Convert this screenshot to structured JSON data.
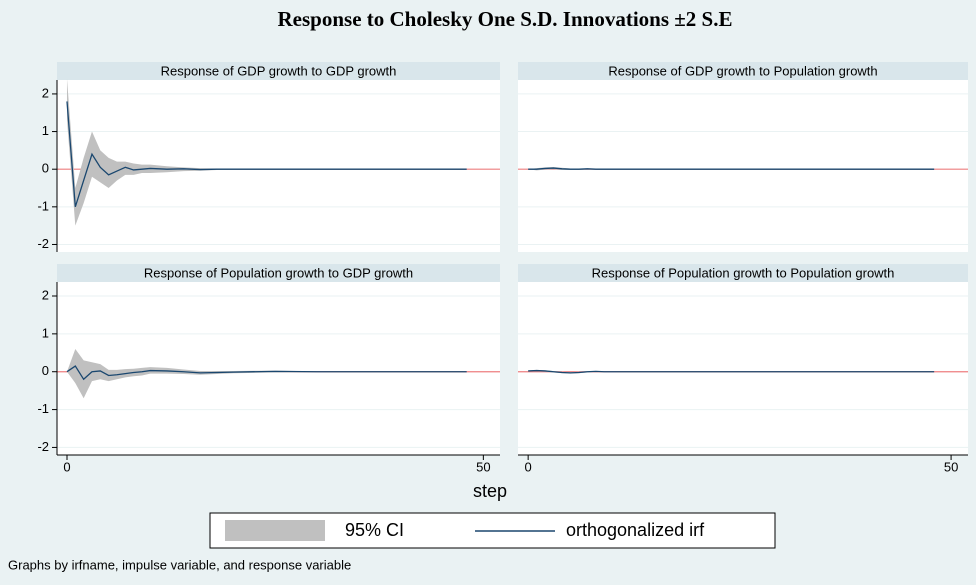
{
  "chart_data": {
    "type": "line",
    "title": "Response to Cholesky One S.D. Innovations ±2 S.E",
    "xlabel": "step",
    "note": "Graphs by irfname, impulse variable, and response variable",
    "series": [
      {
        "name": "95% CI",
        "color": "#c0c0c0"
      },
      {
        "name": "orthogonalized irf",
        "color": "#1a476f"
      }
    ],
    "zero_line_color": "#f08080",
    "grid": true,
    "xlim": [
      -1.2,
      52
    ],
    "xticks": [
      0,
      50
    ],
    "ylim": [
      -2.2,
      2.37
    ],
    "yticks": [
      -2,
      -1,
      0,
      1,
      2
    ],
    "x": [
      0,
      1,
      2,
      3,
      4,
      5,
      6,
      7,
      8,
      9,
      10,
      12,
      14,
      16,
      18,
      20,
      25,
      30,
      35,
      40,
      48
    ],
    "panels": [
      {
        "title": "Response of GDP growth to GDP growth",
        "irf": [
          1.8,
          -1.0,
          -0.3,
          0.4,
          0.05,
          -0.15,
          -0.05,
          0.05,
          -0.02,
          0,
          0.02,
          0,
          0.01,
          -0.01,
          0,
          0,
          0,
          0,
          0,
          0,
          0
        ],
        "ci_upper": [
          2.4,
          -0.5,
          0.3,
          1.0,
          0.5,
          0.3,
          0.2,
          0.2,
          0.15,
          0.12,
          0.12,
          0.08,
          0.05,
          0.03,
          0.02,
          0.01,
          0.01,
          0,
          0,
          0,
          0
        ],
        "ci_lower": [
          1.3,
          -1.5,
          -0.9,
          -0.2,
          -0.35,
          -0.5,
          -0.3,
          -0.15,
          -0.15,
          -0.1,
          -0.1,
          -0.08,
          -0.05,
          -0.04,
          -0.02,
          -0.01,
          -0.01,
          0,
          0,
          0,
          0
        ]
      },
      {
        "title": "Response of GDP growth to Population growth",
        "irf": [
          0,
          0,
          0.02,
          0.03,
          0.01,
          0,
          0,
          0.01,
          0,
          0,
          0,
          0,
          0,
          0,
          0,
          0,
          0,
          0,
          0,
          0,
          0
        ],
        "ci_upper": [
          0,
          0.03,
          0.05,
          0.06,
          0.04,
          0.02,
          0.02,
          0.02,
          0.01,
          0.01,
          0.01,
          0,
          0,
          0,
          0,
          0,
          0,
          0,
          0,
          0,
          0
        ],
        "ci_lower": [
          0,
          -0.03,
          -0.01,
          0,
          -0.02,
          -0.02,
          -0.02,
          -0.01,
          -0.01,
          -0.01,
          -0.01,
          0,
          0,
          0,
          0,
          0,
          0,
          0,
          0,
          0,
          0
        ]
      },
      {
        "title": "Response of Population growth to GDP growth",
        "irf": [
          0,
          0.15,
          -0.2,
          0,
          0.02,
          -0.1,
          -0.08,
          -0.05,
          -0.02,
          0,
          0.03,
          0.02,
          0,
          -0.03,
          -0.02,
          -0.01,
          0.01,
          0,
          0,
          0,
          0
        ],
        "ci_upper": [
          0,
          0.6,
          0.3,
          0.25,
          0.2,
          0.05,
          0.05,
          0.07,
          0.08,
          0.1,
          0.12,
          0.1,
          0.06,
          0.02,
          0.02,
          0.02,
          0.03,
          0.01,
          0,
          0,
          0
        ],
        "ci_lower": [
          0,
          -0.3,
          -0.7,
          -0.25,
          -0.2,
          -0.25,
          -0.2,
          -0.15,
          -0.12,
          -0.1,
          -0.05,
          -0.05,
          -0.06,
          -0.08,
          -0.06,
          -0.04,
          -0.02,
          -0.01,
          0,
          0,
          0
        ]
      },
      {
        "title": "Response of Population growth to Population growth",
        "irf": [
          0.02,
          0.03,
          0.02,
          0,
          -0.02,
          -0.03,
          -0.02,
          0,
          0.01,
          0,
          0,
          0,
          0,
          0,
          0,
          0,
          0,
          0,
          0,
          0,
          0
        ],
        "ci_upper": [
          0.03,
          0.05,
          0.04,
          0.02,
          0,
          -0.01,
          0,
          0.02,
          0.02,
          0.01,
          0.01,
          0,
          0,
          0,
          0,
          0,
          0,
          0,
          0,
          0,
          0
        ],
        "ci_lower": [
          0.01,
          0.01,
          0,
          -0.02,
          -0.04,
          -0.05,
          -0.04,
          -0.02,
          0,
          -0.01,
          -0.01,
          0,
          0,
          0,
          0,
          0,
          0,
          0,
          0,
          0,
          0
        ]
      }
    ]
  }
}
